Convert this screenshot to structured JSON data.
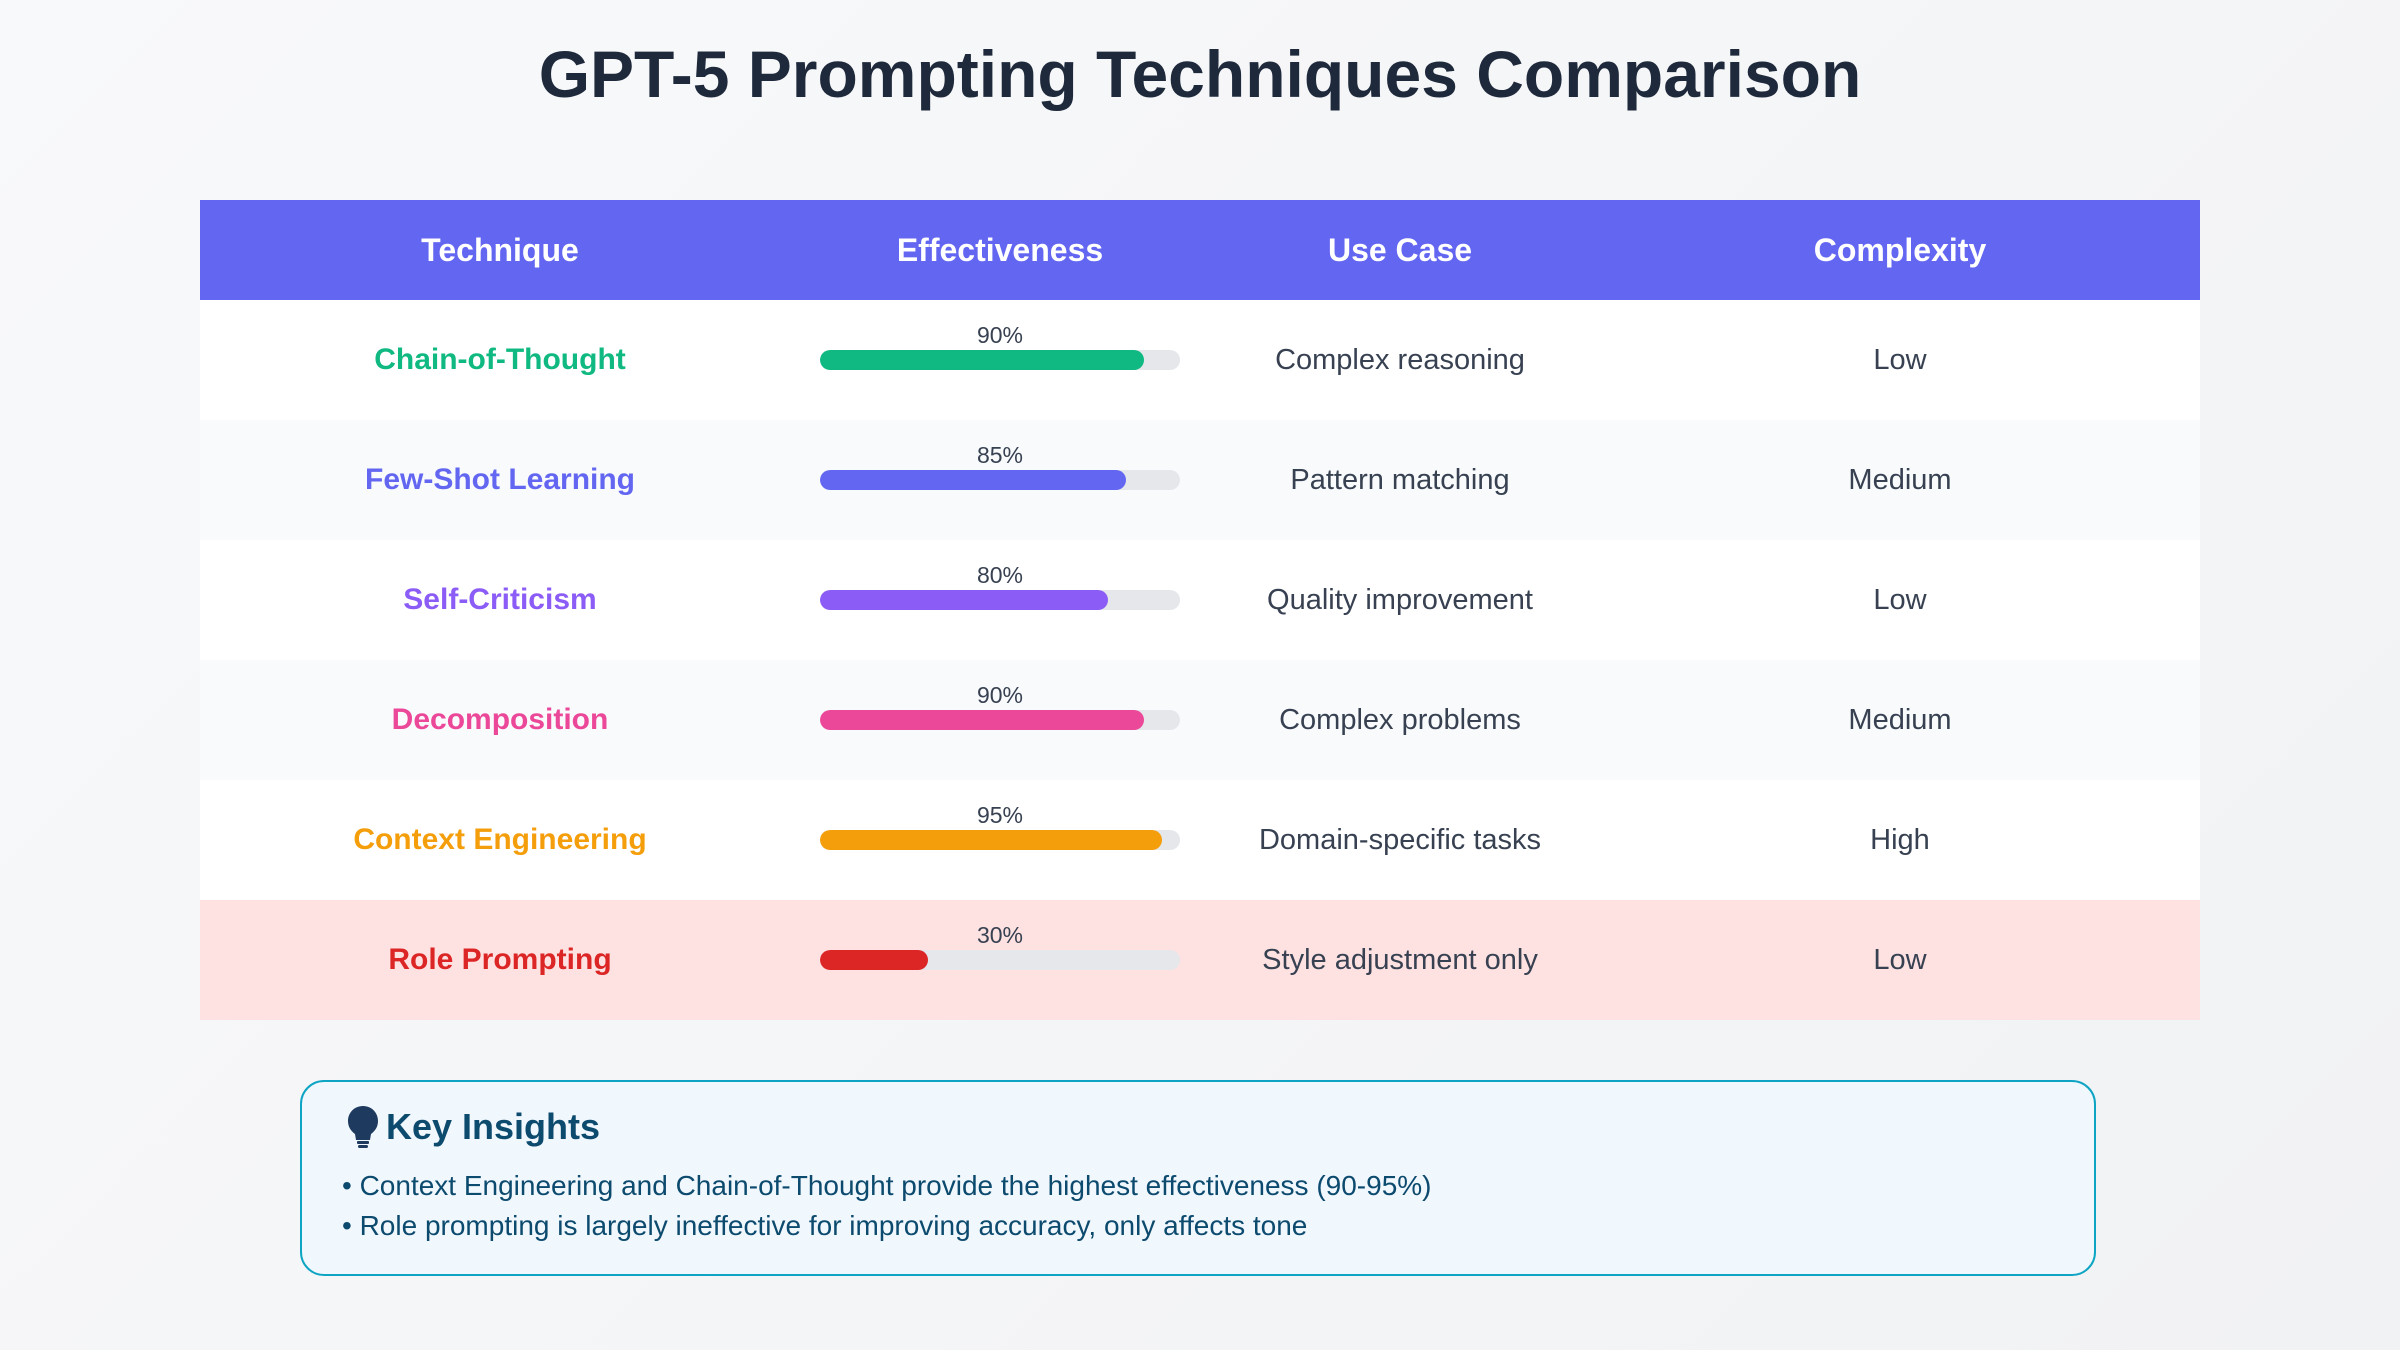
{
  "title": "GPT-5 Prompting Techniques Comparison",
  "colors": {
    "header_bg": "#6366f1",
    "bar_track": "#e5e7eb",
    "warn_row": "#fee2e2",
    "insights_border": "#0ea5c4"
  },
  "chart_data": {
    "type": "table",
    "title": "GPT-5 Prompting Techniques Comparison",
    "columns": [
      "Technique",
      "Effectiveness",
      "Use Case",
      "Complexity"
    ],
    "rows": [
      {
        "technique": "Chain-of-Thought",
        "effectiveness": 90,
        "effectiveness_label": "90%",
        "use_case": "Complex reasoning",
        "complexity": "Low",
        "color": "#10b981",
        "highlight": false
      },
      {
        "technique": "Few-Shot Learning",
        "effectiveness": 85,
        "effectiveness_label": "85%",
        "use_case": "Pattern matching",
        "complexity": "Medium",
        "color": "#6366f1",
        "highlight": false
      },
      {
        "technique": "Self-Criticism",
        "effectiveness": 80,
        "effectiveness_label": "80%",
        "use_case": "Quality improvement",
        "complexity": "Low",
        "color": "#8b5cf6",
        "highlight": false
      },
      {
        "technique": "Decomposition",
        "effectiveness": 90,
        "effectiveness_label": "90%",
        "use_case": "Complex problems",
        "complexity": "Medium",
        "color": "#ec4899",
        "highlight": false
      },
      {
        "technique": "Context Engineering",
        "effectiveness": 95,
        "effectiveness_label": "95%",
        "use_case": "Domain-specific tasks",
        "complexity": "High",
        "color": "#f59e0b",
        "highlight": false
      },
      {
        "technique": "Role Prompting",
        "effectiveness": 30,
        "effectiveness_label": "30%",
        "use_case": "Style adjustment only",
        "complexity": "Low",
        "color": "#dc2626",
        "highlight": true
      }
    ],
    "value_range": [
      0,
      100
    ]
  },
  "insights": {
    "icon": "lightbulb-icon",
    "title": "Key Insights",
    "items": [
      "• Context Engineering and Chain-of-Thought provide the highest effectiveness (90-95%)",
      "• Role prompting is largely ineffective for improving accuracy, only affects tone"
    ]
  }
}
